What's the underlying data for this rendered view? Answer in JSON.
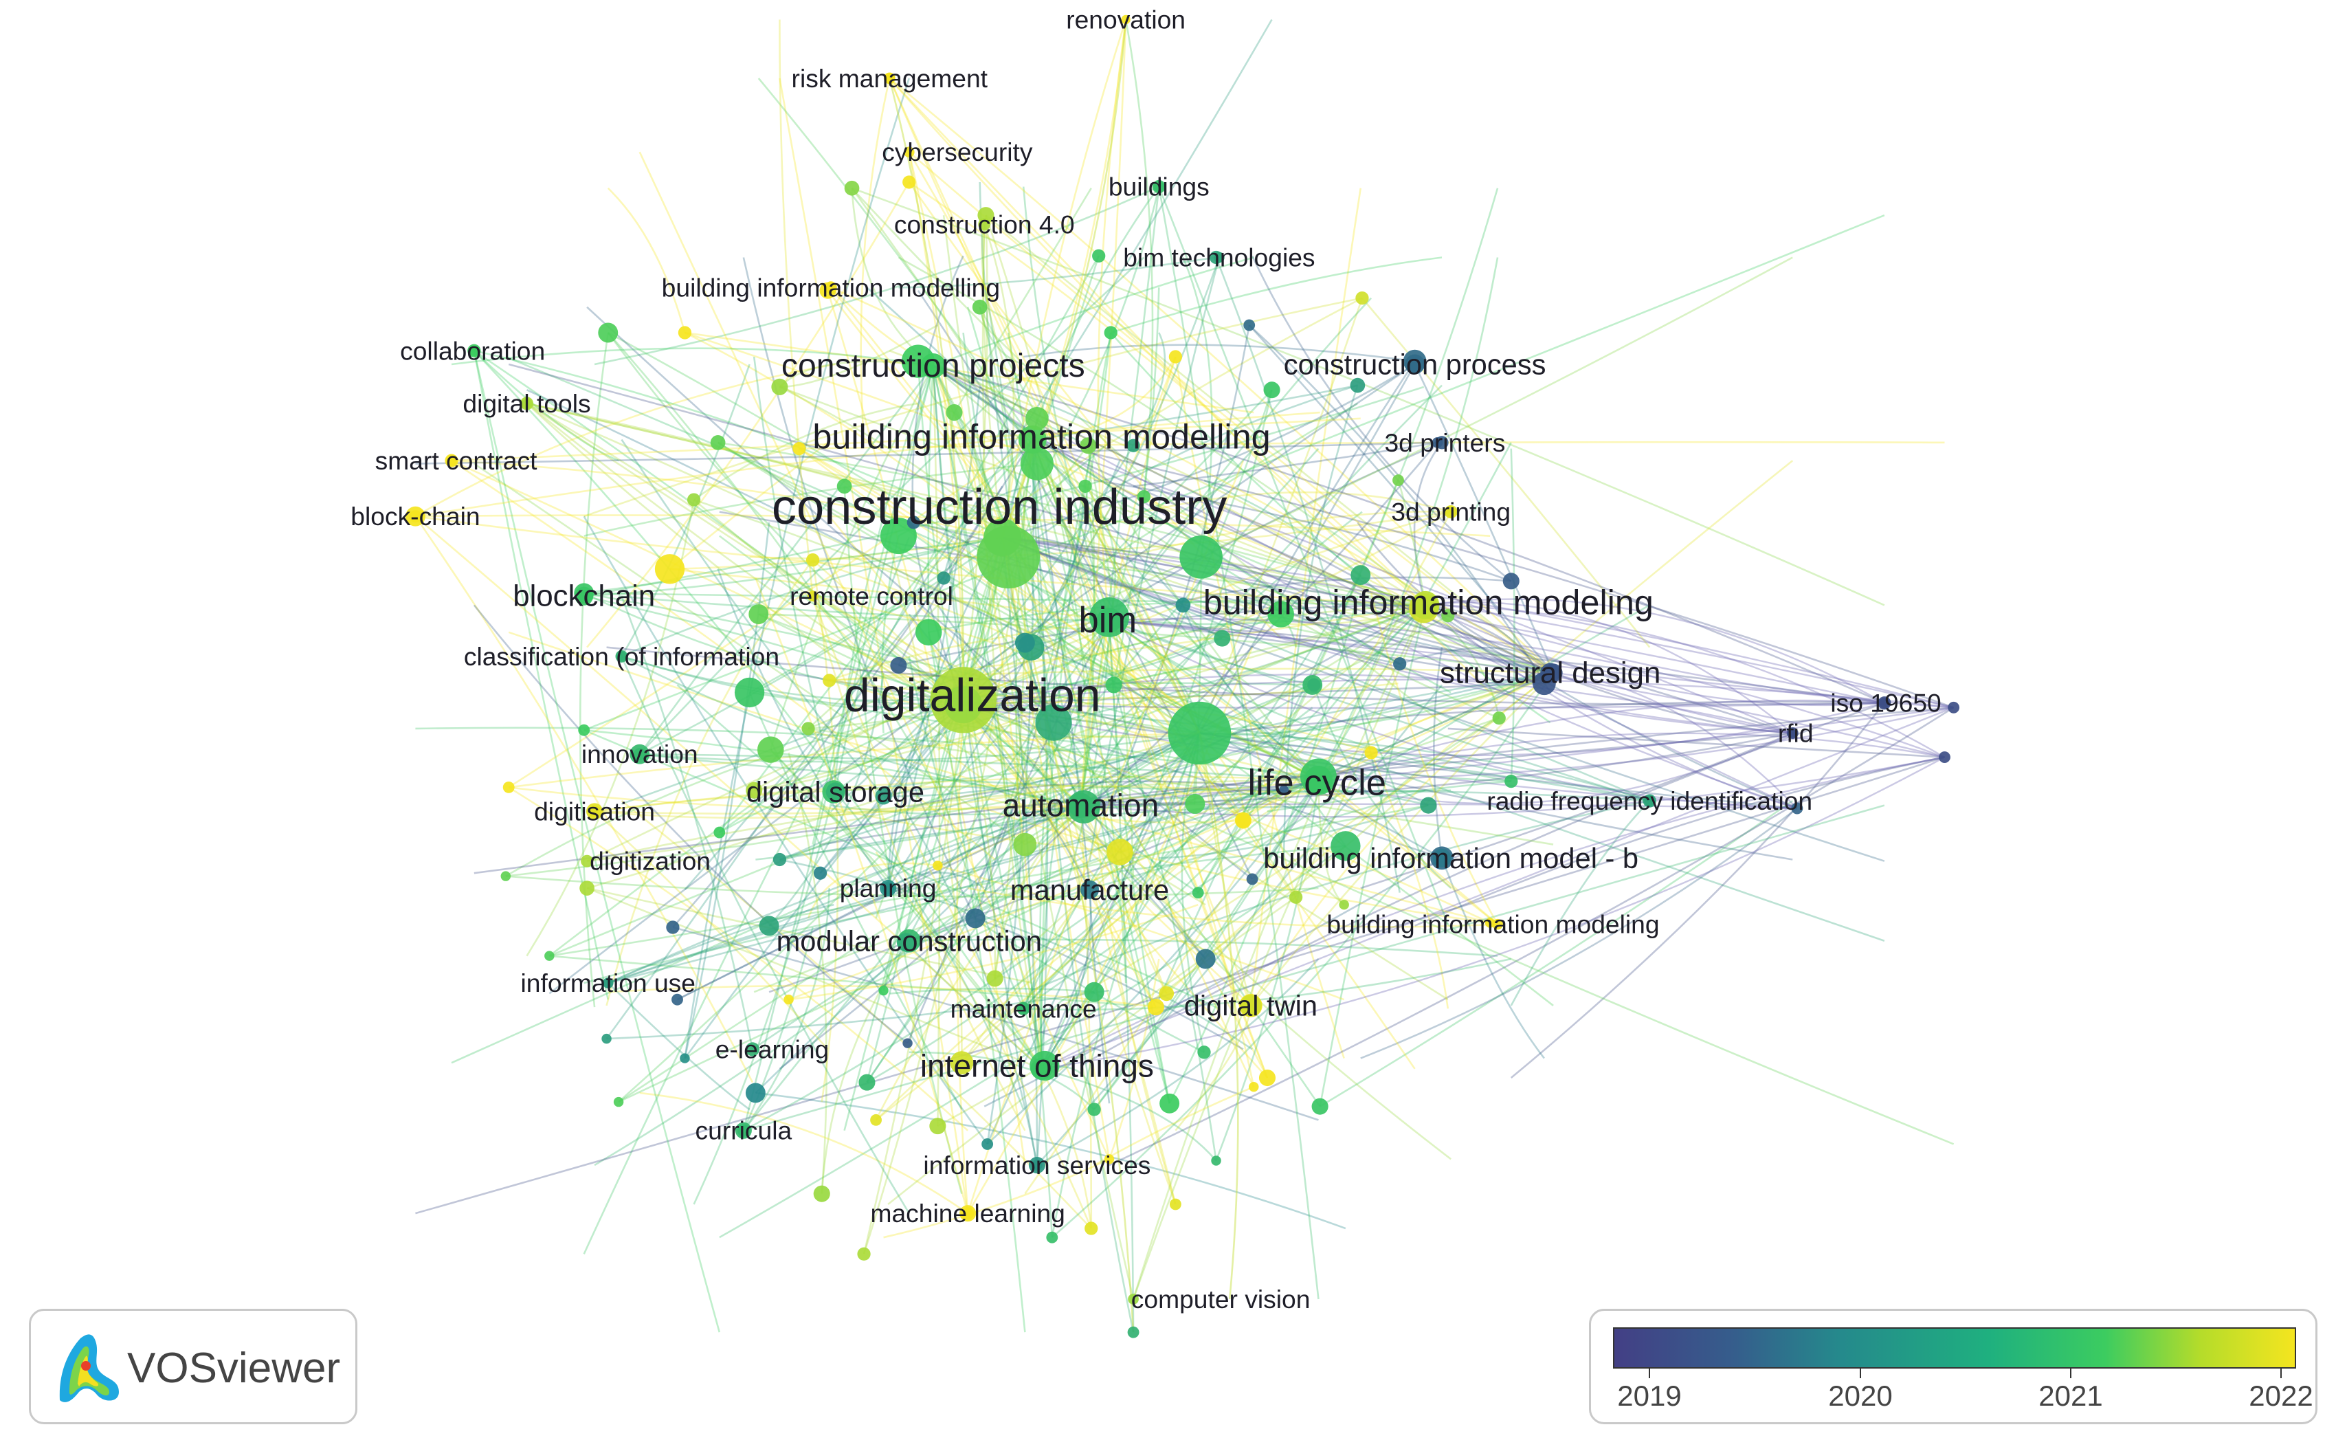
{
  "colors": {
    "y2019": "#43407f",
    "y2020": "#2b8a8c",
    "y2021": "#2fc77a",
    "y2022": "#f2e424"
  },
  "brand": {
    "name": "VOSviewer",
    "logo_icon": "vosviewer-logo-icon"
  },
  "legend": {
    "ticks": [
      "2019",
      "2020",
      "2021",
      "2022"
    ]
  },
  "nodes": [
    {
      "id": "construction-industry",
      "label": "construction industry",
      "year": 2021.2,
      "weight": 10
    },
    {
      "id": "digitalization",
      "label": "digitalization",
      "year": 2021.5,
      "weight": 10
    },
    {
      "id": "bim",
      "label": "bim",
      "year": 2020.8,
      "weight": 6
    },
    {
      "id": "building-information-modeling",
      "label": "building information modeling",
      "year": 2021.7,
      "weight": 7
    },
    {
      "id": "building-information-modelling",
      "label": "building information modelling",
      "year": 2021.1,
      "weight": 7
    },
    {
      "id": "construction-projects",
      "label": "construction projects",
      "year": 2021.0,
      "weight": 6
    },
    {
      "id": "life-cycle",
      "label": "life cycle",
      "year": 2020.9,
      "weight": 7
    },
    {
      "id": "automation",
      "label": "automation",
      "year": 2020.7,
      "weight": 6
    },
    {
      "id": "blockchain",
      "label": "blockchain",
      "year": 2020.9,
      "weight": 4
    },
    {
      "id": "digital-storage",
      "label": "digital storage",
      "year": 2020.6,
      "weight": 4
    },
    {
      "id": "manufacture",
      "label": "manufacture",
      "year": 2019.8,
      "weight": 4
    },
    {
      "id": "modular-construction",
      "label": "modular construction",
      "year": 2020.5,
      "weight": 4
    },
    {
      "id": "internet-of-things",
      "label": "internet of things",
      "year": 2020.9,
      "weight": 5
    },
    {
      "id": "digital-twin",
      "label": "digital twin",
      "year": 2021.8,
      "weight": 5
    },
    {
      "id": "building-information-model-b",
      "label": "building information model - b",
      "year": 2019.8,
      "weight": 4
    },
    {
      "id": "structural-design",
      "label": "structural design",
      "year": 2019.3,
      "weight": 4
    },
    {
      "id": "construction-process",
      "label": "construction process",
      "year": 2019.6,
      "weight": 3
    },
    {
      "id": "renovation",
      "label": "renovation",
      "year": 2022.0,
      "weight": 1
    },
    {
      "id": "risk-management",
      "label": "risk management",
      "year": 2022.1,
      "weight": 1.5
    },
    {
      "id": "cybersecurity",
      "label": "cybersecurity",
      "year": 2022.0,
      "weight": 1.5
    },
    {
      "id": "buildings",
      "label": "buildings",
      "year": 2020.8,
      "weight": 1.5
    },
    {
      "id": "construction-4-0",
      "label": "construction 4.0",
      "year": 2021.6,
      "weight": 2
    },
    {
      "id": "bim-technologies",
      "label": "bim technologies",
      "year": 2020.4,
      "weight": 1.5
    },
    {
      "id": "building-information-modelling-2",
      "label": "building information modelling",
      "year": 2022.0,
      "weight": 2
    },
    {
      "id": "collaboration",
      "label": "collaboration",
      "year": 2021.0,
      "weight": 1.5
    },
    {
      "id": "digital-tools",
      "label": "digital tools",
      "year": 2021.6,
      "weight": 1.5
    },
    {
      "id": "smart-contract",
      "label": "smart contract",
      "year": 2022.0,
      "weight": 1.5
    },
    {
      "id": "block-chain",
      "label": "block-chain",
      "year": 2022.0,
      "weight": 2
    },
    {
      "id": "3d-printers",
      "label": "3d printers",
      "year": 2019.4,
      "weight": 1.5
    },
    {
      "id": "3d-printing",
      "label": "3d printing",
      "year": 2021.9,
      "weight": 1.5
    },
    {
      "id": "remote-control",
      "label": "remote control",
      "year": 2021.9,
      "weight": 1.5
    },
    {
      "id": "classification-of-information",
      "label": "classification (of information",
      "year": 2020.6,
      "weight": 2
    },
    {
      "id": "innovation",
      "label": "innovation",
      "year": 2020.7,
      "weight": 2
    },
    {
      "id": "digitisation",
      "label": "digitisation",
      "year": 2021.9,
      "weight": 2
    },
    {
      "id": "digitization",
      "label": "digitization",
      "year": 2021.6,
      "weight": 2
    },
    {
      "id": "planning",
      "label": "planning",
      "year": 2020.1,
      "weight": 2
    },
    {
      "id": "iso-19650",
      "label": "iso 19650",
      "year": 2019.2,
      "weight": 1.5
    },
    {
      "id": "rfid",
      "label": "rfid",
      "year": 2019.2,
      "weight": 1
    },
    {
      "id": "radio-frequency-identification",
      "label": "radio frequency identification",
      "year": 2020.4,
      "weight": 1.5
    },
    {
      "id": "building-information-modeling-2",
      "label": "building information modeling",
      "year": 2022.0,
      "weight": 1.5
    },
    {
      "id": "information-use",
      "label": "information use",
      "year": 2020.3,
      "weight": 1.5
    },
    {
      "id": "maintenance",
      "label": "maintenance",
      "year": 2020.7,
      "weight": 2
    },
    {
      "id": "e-learning",
      "label": "e-learning",
      "year": 2020.6,
      "weight": 2.5
    },
    {
      "id": "curricula",
      "label": "curricula",
      "year": 2020.7,
      "weight": 2
    },
    {
      "id": "information-services",
      "label": "information services",
      "year": 2020.2,
      "weight": 1.5
    },
    {
      "id": "machine-learning",
      "label": "machine learning",
      "year": 2022.0,
      "weight": 2
    },
    {
      "id": "computer-vision",
      "label": "computer vision",
      "year": 2021.5,
      "weight": 1.5
    }
  ]
}
